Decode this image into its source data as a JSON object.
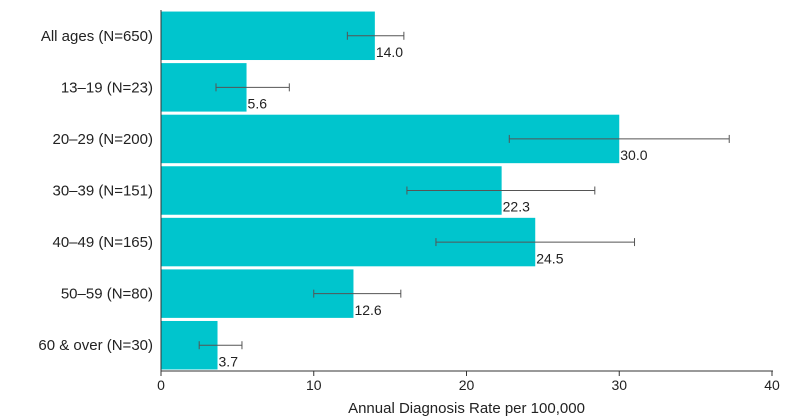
{
  "chart_data": {
    "type": "bar",
    "orientation": "horizontal",
    "categories": [
      "All ages (N=650)",
      "13–19 (N=23)",
      "20–29 (N=200)",
      "30–39 (N=151)",
      "40–49 (N=165)",
      "50–59 (N=80)",
      "60 & over (N=30)"
    ],
    "values": [
      14.0,
      5.6,
      30.0,
      22.3,
      24.5,
      12.6,
      3.7
    ],
    "value_labels": [
      "14.0",
      "5.6",
      "30.0",
      "22.3",
      "24.5",
      "12.6",
      "3.7"
    ],
    "error_low": [
      12.2,
      3.6,
      22.8,
      16.1,
      18.0,
      10.0,
      2.5
    ],
    "error_high": [
      15.9,
      8.4,
      37.2,
      28.4,
      31.0,
      15.7,
      5.3
    ],
    "xlabel": "Annual Diagnosis Rate per 100,000",
    "ylabel": "",
    "title": "",
    "xlim": [
      0,
      40
    ],
    "xticks": [
      0,
      10,
      20,
      30,
      40
    ],
    "grid": false,
    "legend": "none",
    "colors": {
      "bar": "#00c5cd",
      "error": "#555555",
      "axis": "#333333",
      "text": "#222222"
    }
  }
}
